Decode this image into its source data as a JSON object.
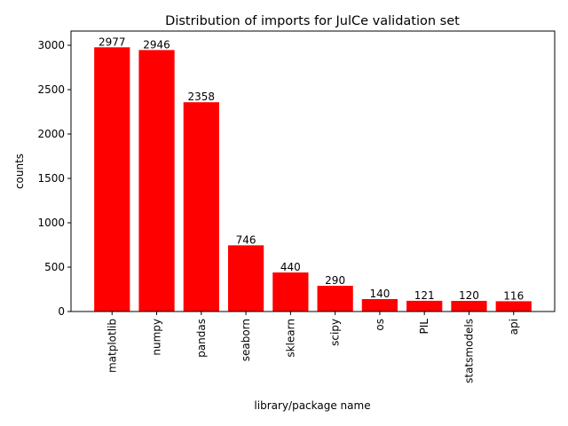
{
  "chart_data": {
    "type": "bar",
    "title": "Distribution of imports for JulCe validation set",
    "xlabel": "library/package name",
    "ylabel": "counts",
    "categories": [
      "matplotlib",
      "numpy",
      "pandas",
      "seaborn",
      "sklearn",
      "scipy",
      "os",
      "PIL",
      "statsmodels",
      "api"
    ],
    "values": [
      2977,
      2946,
      2358,
      746,
      440,
      290,
      140,
      121,
      120,
      116
    ],
    "data_labels": [
      "2977",
      "2946",
      "2358",
      "746",
      "440",
      "290",
      "140",
      "121",
      "120",
      "116"
    ],
    "ylim": [
      0,
      3160
    ],
    "yticks": [
      0,
      500,
      1000,
      1500,
      2000,
      2500,
      3000
    ],
    "ytick_labels": [
      "0",
      "500",
      "1000",
      "1500",
      "2000",
      "2500",
      "3000"
    ],
    "bar_color": "#ff0000",
    "grid": false,
    "legend": "none"
  }
}
